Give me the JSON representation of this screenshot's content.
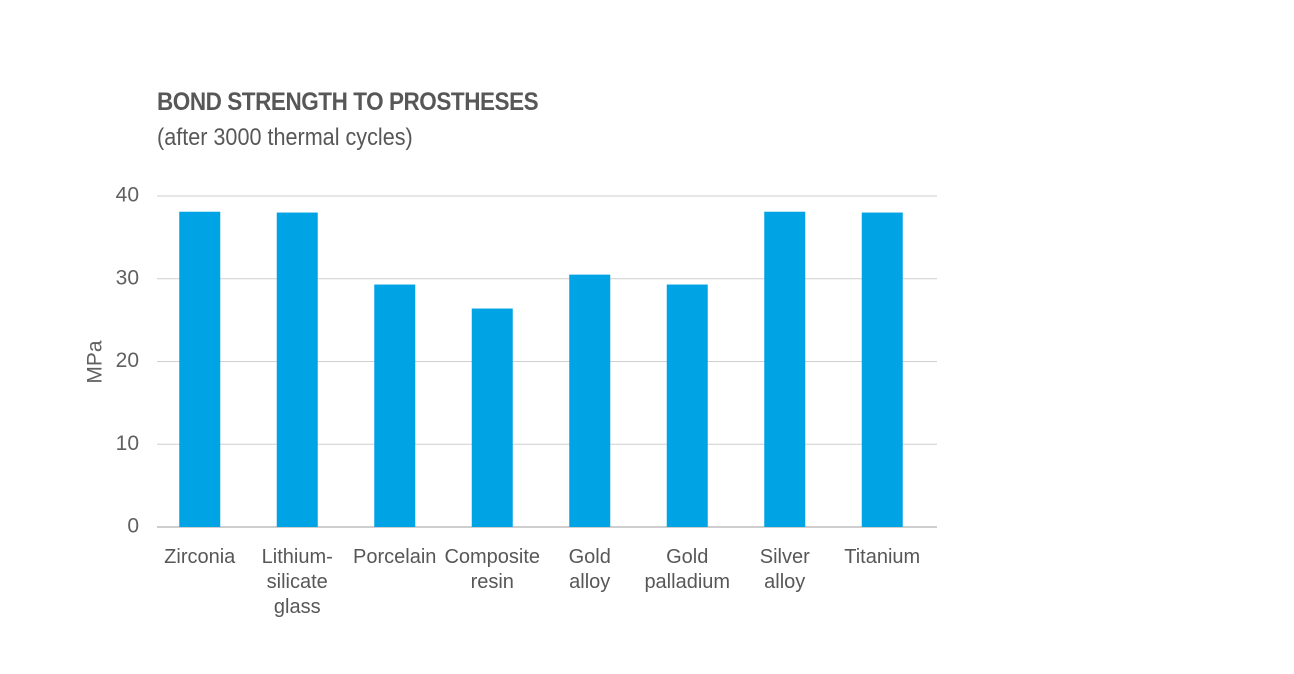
{
  "chart_data": {
    "type": "bar",
    "title": "BOND STRENGTH TO PROSTHESES",
    "subtitle": "(after 3000 thermal cycles)",
    "ylabel": "MPa",
    "xlabel": "",
    "ylim": [
      0,
      40
    ],
    "yticks": [
      "0",
      "10",
      "20",
      "30",
      "40"
    ],
    "grid": true,
    "categories": [
      [
        "Zirconia"
      ],
      [
        "Lithium-",
        "silicate",
        "glass"
      ],
      [
        "Porcelain"
      ],
      [
        "Composite",
        "resin"
      ],
      [
        "Gold",
        "alloy"
      ],
      [
        "Gold",
        "palladium"
      ],
      [
        "Silver",
        "alloy"
      ],
      [
        "Titanium"
      ]
    ],
    "values": [
      38.1,
      38.0,
      29.3,
      26.4,
      30.5,
      29.3,
      38.1,
      38.0
    ],
    "colors": {
      "bar": "#00A4E4",
      "grid": "#cfcfcf",
      "axis": "#bdbdbd"
    }
  }
}
